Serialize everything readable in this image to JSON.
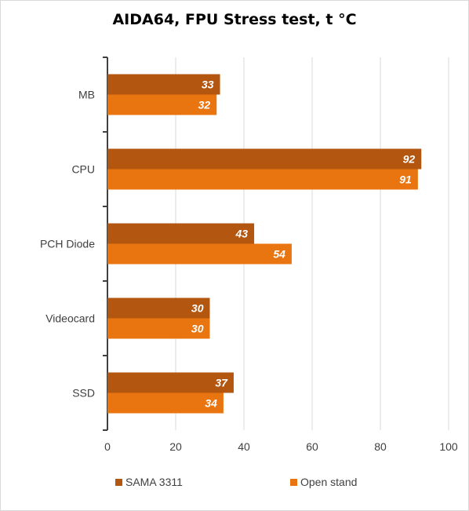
{
  "chart_data": {
    "type": "bar",
    "orientation": "horizontal",
    "title": "AIDA64, FPU Stress test, t °C",
    "categories": [
      "MB",
      "CPU",
      "PCH Diode",
      "Videocard",
      "SSD"
    ],
    "series": [
      {
        "name": "SAMA 3311",
        "color": "#b3560f",
        "values": [
          33,
          92,
          43,
          30,
          37
        ]
      },
      {
        "name": "Open stand",
        "color": "#e97511",
        "values": [
          32,
          91,
          54,
          30,
          34
        ]
      }
    ],
    "xlim": [
      0,
      100
    ],
    "xticks": [
      0,
      20,
      40,
      60,
      80,
      100
    ],
    "grid": "vertical",
    "legend_position": "bottom",
    "data_labels": "inside-end"
  }
}
